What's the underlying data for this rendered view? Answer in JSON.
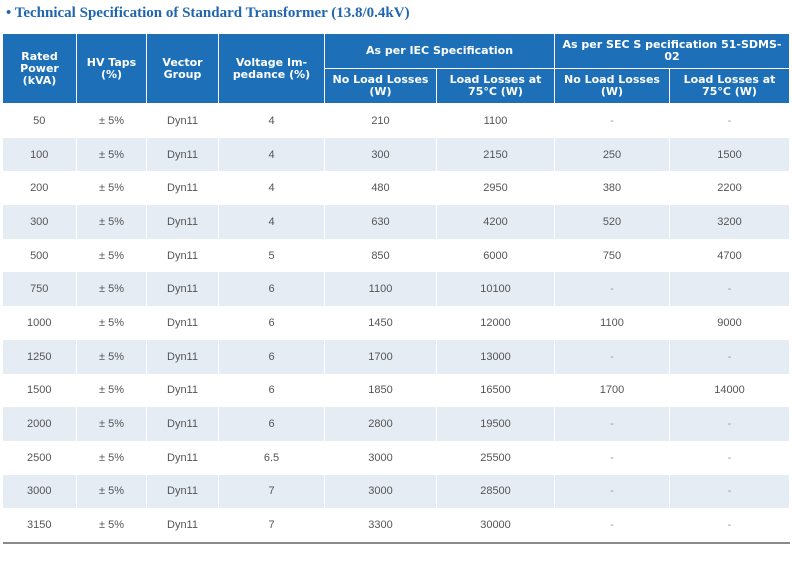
{
  "title": "• Technical Specification of Standard Transformer (13.8/0.4kV)",
  "headers": {
    "rated_power": "Rated Power (kVA)",
    "hv_taps": "HV Taps (%)",
    "vector_group": "Vector Group",
    "voltage_impedance": "Voltage Im- pedance (%)",
    "iec_group": "As per IEC Specification",
    "sec_group": "As per SEC S pecification 51-SDMS-02",
    "iec_no_load": "No Load Losses (W)",
    "iec_load": "Load Losses at 75°C (W)",
    "sec_no_load": "No Load Losses (W)",
    "sec_load": "Load Losses at 75°C (W)"
  },
  "rows": [
    [
      "50",
      "± 5%",
      "Dyn11",
      "4",
      "210",
      "1100",
      "-",
      "-"
    ],
    [
      "100",
      "± 5%",
      "Dyn11",
      "4",
      "300",
      "2150",
      "250",
      "1500"
    ],
    [
      "200",
      "± 5%",
      "Dyn11",
      "4",
      "480",
      "2950",
      "380",
      "2200"
    ],
    [
      "300",
      "± 5%",
      "Dyn11",
      "4",
      "630",
      "4200",
      "520",
      "3200"
    ],
    [
      "500",
      "± 5%",
      "Dyn11",
      "5",
      "850",
      "6000",
      "750",
      "4700"
    ],
    [
      "750",
      "± 5%",
      "Dyn11",
      "6",
      "1100",
      "10100",
      "-",
      "-"
    ],
    [
      "1000",
      "± 5%",
      "Dyn11",
      "6",
      "1450",
      "12000",
      "1100",
      "9000"
    ],
    [
      "1250",
      "± 5%",
      "Dyn11",
      "6",
      "1700",
      "13000",
      "-",
      "-"
    ],
    [
      "1500",
      "± 5%",
      "Dyn11",
      "6",
      "1850",
      "16500",
      "1700",
      "14000"
    ],
    [
      "2000",
      "± 5%",
      "Dyn11",
      "6",
      "2800",
      "19500",
      "-",
      "-"
    ],
    [
      "2500",
      "± 5%",
      "Dyn11",
      "6.5",
      "3000",
      "25500",
      "-",
      "-"
    ],
    [
      "3000",
      "± 5%",
      "Dyn11",
      "7",
      "3000",
      "28500",
      "-",
      "-"
    ],
    [
      "3150",
      "± 5%",
      "Dyn11",
      "7",
      "3300",
      "30000",
      "-",
      "-"
    ]
  ]
}
